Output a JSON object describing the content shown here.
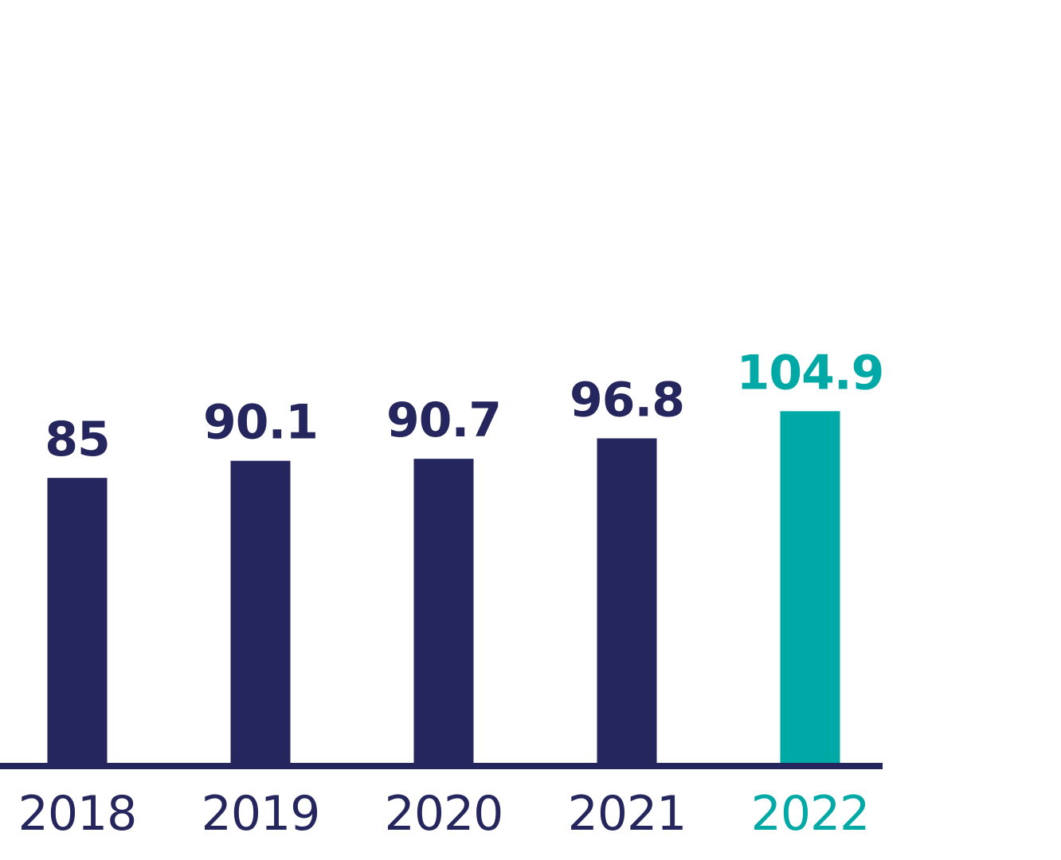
{
  "chart_data": {
    "type": "bar",
    "categories": [
      "2018",
      "2019",
      "2020",
      "2021",
      "2022"
    ],
    "values": [
      85,
      90.1,
      90.7,
      96.8,
      104.9
    ],
    "value_labels": [
      "85",
      "90.1",
      "90.7",
      "96.8",
      "104.9"
    ],
    "ylim": [
      0,
      110
    ],
    "grid": false,
    "highlight_index": 4,
    "colors": {
      "bar": "#26265e",
      "highlight": "#00a9a5",
      "axis": "#26265e",
      "text": "#26265e"
    }
  }
}
